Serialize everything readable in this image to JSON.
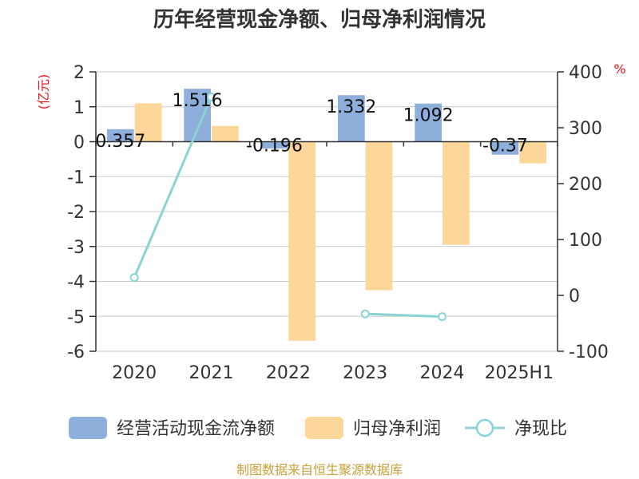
{
  "title": "历年经营现金净额、归母净利润情况",
  "source": "制图数据来自恒生聚源数据库",
  "left_axis_unit": "(亿元)",
  "right_axis_unit": "%",
  "chart_data": {
    "type": "bar",
    "categories": [
      "2020",
      "2021",
      "2022",
      "2023",
      "2024",
      "2025H1"
    ],
    "left_axis": {
      "min": -6,
      "max": 2,
      "ticks": [
        2,
        1,
        0,
        -1,
        -2,
        -3,
        -4,
        -5,
        -6
      ]
    },
    "right_axis": {
      "min": -100,
      "max": 400,
      "ticks": [
        400,
        300,
        200,
        100,
        0,
        -100
      ]
    },
    "grid": true,
    "legend_position": "bottom",
    "series": [
      {
        "name": "经营活动现金流净额",
        "type": "bar",
        "axis": "left",
        "color": "#8eaedb",
        "values": [
          0.357,
          1.516,
          -0.196,
          1.332,
          1.092,
          -0.37
        ],
        "labels": [
          "0.357",
          "1.516",
          "-0.196",
          "1.332",
          "1.092",
          "-0.37"
        ]
      },
      {
        "name": "归母净利润",
        "type": "bar",
        "axis": "left",
        "color": "#fdd699",
        "values": [
          1.1,
          0.45,
          -5.7,
          -4.25,
          -2.95,
          -0.62
        ]
      },
      {
        "name": "净现比",
        "type": "line",
        "axis": "right",
        "color": "#8ad3d6",
        "values": [
          32,
          355,
          null,
          -33,
          -38,
          null
        ]
      }
    ]
  }
}
